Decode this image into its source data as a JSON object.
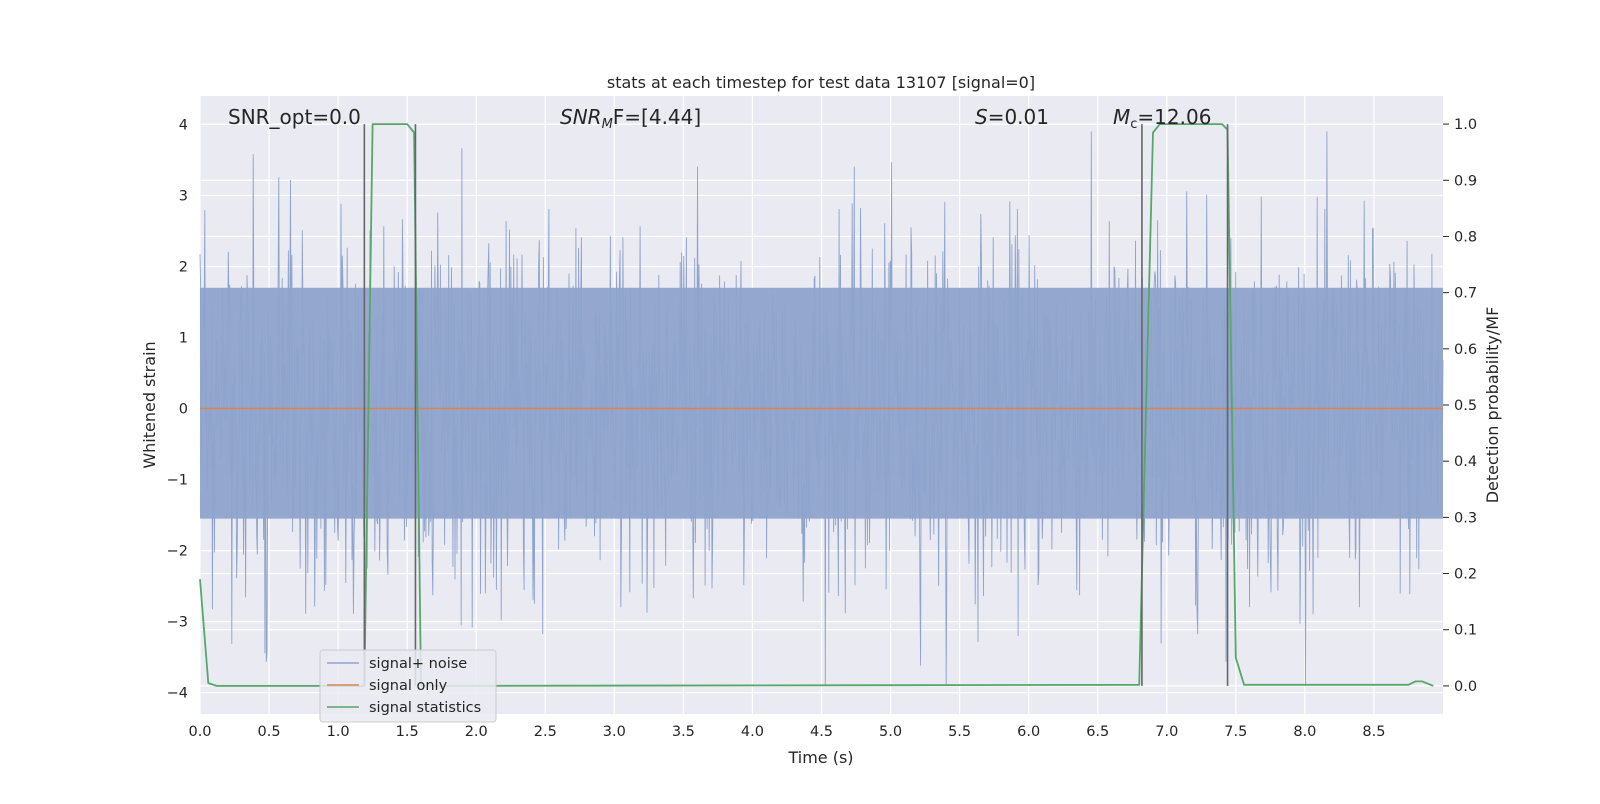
{
  "chart_data": {
    "type": "line",
    "title": "stats at each timestep for test data 13107 [signal=0]",
    "xlabel": "Time (s)",
    "ylabel": "Whitened strain",
    "y2label": "Detection probability/MF",
    "xlim": [
      0.0,
      9.0
    ],
    "ylim": [
      -4.3,
      4.4
    ],
    "y2lim": [
      -0.05,
      1.05
    ],
    "xticks": [
      "0.0",
      "0.5",
      "1.0",
      "1.5",
      "2.0",
      "2.5",
      "3.0",
      "3.5",
      "4.0",
      "4.5",
      "5.0",
      "5.5",
      "6.0",
      "6.5",
      "7.0",
      "7.5",
      "8.0",
      "8.5"
    ],
    "yticks": [
      "4",
      "3",
      "2",
      "1",
      "0",
      "−1",
      "−2",
      "−3",
      "−4"
    ],
    "y2ticks": [
      "1.0",
      "0.9",
      "0.8",
      "0.7",
      "0.6",
      "0.5",
      "0.4",
      "0.3",
      "0.2",
      "0.1",
      "0.0"
    ],
    "grid": true,
    "legend_position": "lower-left",
    "annotations": {
      "snr_opt": "SNR_opt=0.0",
      "snr_mf_base": "SNR",
      "snr_mf_sub": "M",
      "snr_mf_rest": "F=[4.44]",
      "s_italic": "S",
      "s_rest": "=0.01",
      "mc_base": "M",
      "mc_sub": "c",
      "mc_rest": "=12.06"
    },
    "series": [
      {
        "name": "signal+ noise",
        "color": "#8fa4cc",
        "description_values": "noise time series, amplitude mostly within about ±2.5, peaks near ±3.8",
        "noise_bounds": {
          "core_max": 1.7,
          "core_min": -1.55,
          "peak_max": 3.9,
          "peak_min": -3.9
        }
      },
      {
        "name": "signal only",
        "color": "#dd8452",
        "x": [
          0.0,
          9.0
        ],
        "y": [
          0.0,
          0.0
        ]
      },
      {
        "name": "signal statistics",
        "color": "#55a868",
        "x": [
          0.0,
          0.06,
          0.12,
          1.19,
          1.22,
          1.25,
          1.5,
          1.55,
          1.6,
          6.8,
          6.85,
          6.9,
          6.95,
          7.4,
          7.44,
          7.5,
          7.56,
          8.75,
          8.8,
          8.85,
          8.93
        ],
        "y": [
          0.19,
          0.005,
          0.0,
          0.0,
          0.5,
          1.0,
          1.0,
          0.985,
          0.0,
          0.002,
          0.5,
          0.985,
          1.0,
          1.0,
          0.99,
          0.05,
          0.002,
          0.002,
          0.008,
          0.008,
          0.0
        ]
      }
    ],
    "vlines": [
      {
        "x": 1.19,
        "y2range": [
          0.0,
          1.0
        ]
      },
      {
        "x": 1.56,
        "y2range": [
          0.0,
          1.0
        ]
      },
      {
        "x": 6.82,
        "y2range": [
          0.0,
          1.0
        ]
      },
      {
        "x": 7.44,
        "y2range": [
          0.0,
          1.0
        ]
      }
    ]
  }
}
